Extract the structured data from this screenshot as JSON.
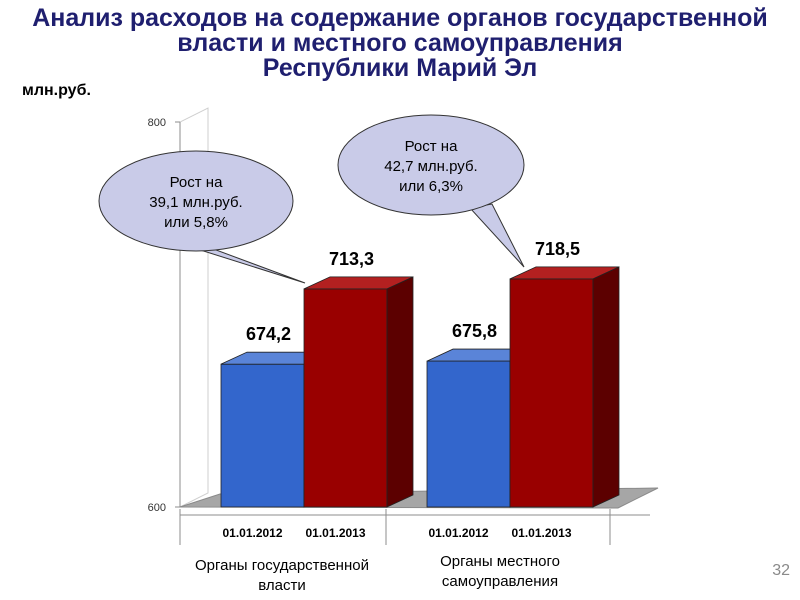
{
  "title_lines": [
    "Анализ расходов на содержание органов государственной",
    "власти и местного самоуправления",
    "Республики Марий Эл"
  ],
  "unit": "млн.руб.",
  "slide_number": "32",
  "colors": {
    "title": "#1f1f6f",
    "blue_bar": "#3366cc",
    "red_bar": "#990000",
    "bubble": "#c9cbe8"
  },
  "callouts": [
    {
      "lines": [
        "Рост на",
        "39,1 млн.руб.",
        "или 5,8%"
      ]
    },
    {
      "lines": [
        "Рост на",
        "42,7 млн.руб.",
        "или 6,3%"
      ]
    }
  ],
  "chart_data": {
    "type": "bar",
    "categories": [
      "01.01.2012",
      "01.01.2013",
      "01.01.2012",
      "01.01.2013"
    ],
    "groups": [
      "Органы государственной власти",
      "Органы местного самоуправления"
    ],
    "values": [
      674.2,
      713.3,
      675.8,
      718.5
    ],
    "value_labels": [
      "674,2",
      "713,3",
      "675,8",
      "718,5"
    ],
    "bar_colors": [
      "blue",
      "red",
      "blue",
      "red"
    ],
    "ylim": [
      600,
      800
    ],
    "yticks": [
      "600",
      "800"
    ],
    "grid": false,
    "legend": "none",
    "style": "3d"
  }
}
